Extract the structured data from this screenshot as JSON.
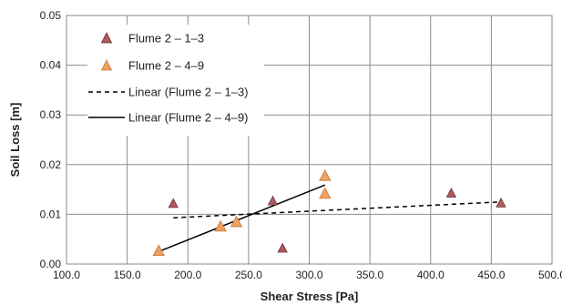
{
  "chart_data": {
    "type": "scatter",
    "title": "",
    "xlabel": "Shear Stress [Pa]",
    "ylabel": "Soil Loss [m]",
    "xlim": [
      100,
      500
    ],
    "ylim": [
      0,
      0.05
    ],
    "x_ticks": [
      100,
      150,
      200,
      250,
      300,
      350,
      400,
      450,
      500
    ],
    "x_tick_labels": [
      "100.0",
      "150.0",
      "200.0",
      "250.0",
      "300.0",
      "350.0",
      "400.0",
      "450.0",
      "500.0"
    ],
    "y_ticks": [
      0,
      0.01,
      0.02,
      0.03,
      0.04,
      0.05
    ],
    "y_tick_labels": [
      "0.00",
      "0.01",
      "0.02",
      "0.03",
      "0.04",
      "0.05"
    ],
    "grid": true,
    "legend_position": "top-left",
    "series": [
      {
        "name": "Flume 2 – 1–3",
        "marker": "triangle",
        "color": "#b05a5e",
        "x": [
          188,
          270,
          278,
          417,
          458
        ],
        "y": [
          0.0122,
          0.0127,
          0.0032,
          0.0143,
          0.0123
        ]
      },
      {
        "name": "Flume 2 – 4–9",
        "marker": "triangle",
        "color": "#f0a060",
        "x": [
          176,
          227,
          240,
          313,
          313
        ],
        "y": [
          0.0027,
          0.0076,
          0.0085,
          0.0178,
          0.0142
        ]
      }
    ],
    "trendlines": [
      {
        "name": "Linear (Flume 2 – 1–3)",
        "style": "dashed",
        "color": "#000000",
        "x": [
          188,
          458
        ],
        "y": [
          0.0093,
          0.0125
        ]
      },
      {
        "name": "Linear (Flume 2 – 4–9)",
        "style": "solid",
        "color": "#000000",
        "x": [
          176,
          313
        ],
        "y": [
          0.0025,
          0.0159
        ]
      }
    ]
  }
}
